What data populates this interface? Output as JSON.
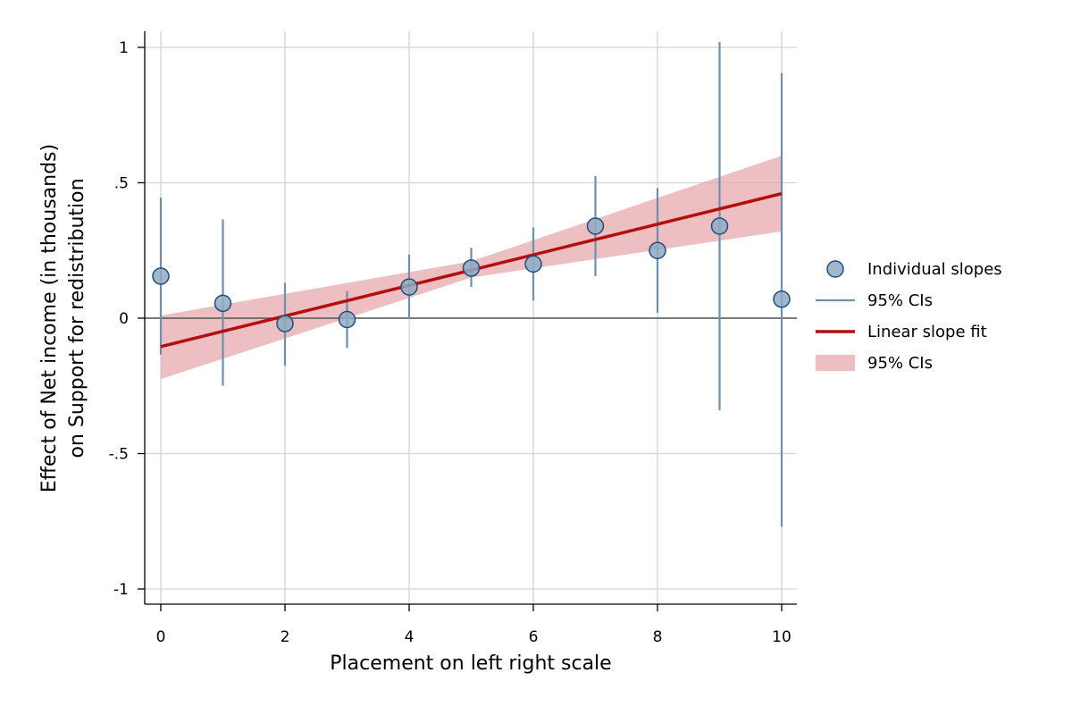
{
  "chart_data": {
    "type": "scatter",
    "xlabel": "Placement on left right scale",
    "ylabel_line1": "Effect of Net income (in thousands)",
    "ylabel_line2": "on Support for redistribution",
    "xlim": [
      0,
      10
    ],
    "ylim": [
      -1,
      1
    ],
    "x_ticks": [
      0,
      2,
      4,
      6,
      8,
      10
    ],
    "x_tick_labels": [
      "0",
      "2",
      "4",
      "6",
      "8",
      "10"
    ],
    "y_ticks": [
      1,
      0.5,
      0,
      -0.5,
      -1
    ],
    "y_tick_labels": [
      "1",
      ".5",
      "0",
      "-.5",
      "-1"
    ],
    "grid": true,
    "individual_slopes": [
      {
        "x": 0,
        "y": 0.155,
        "ci_low": -0.135,
        "ci_high": 0.445
      },
      {
        "x": 1,
        "y": 0.055,
        "ci_low": -0.25,
        "ci_high": 0.365
      },
      {
        "x": 2,
        "y": -0.02,
        "ci_low": -0.175,
        "ci_high": 0.13
      },
      {
        "x": 3,
        "y": -0.005,
        "ci_low": -0.11,
        "ci_high": 0.1
      },
      {
        "x": 4,
        "y": 0.115,
        "ci_low": 0.0,
        "ci_high": 0.235
      },
      {
        "x": 5,
        "y": 0.185,
        "ci_low": 0.115,
        "ci_high": 0.26
      },
      {
        "x": 6,
        "y": 0.2,
        "ci_low": 0.065,
        "ci_high": 0.335
      },
      {
        "x": 7,
        "y": 0.34,
        "ci_low": 0.155,
        "ci_high": 0.525
      },
      {
        "x": 8,
        "y": 0.25,
        "ci_low": 0.02,
        "ci_high": 0.48
      },
      {
        "x": 9,
        "y": 0.34,
        "ci_low": -0.34,
        "ci_high": 1.02
      },
      {
        "x": 10,
        "y": 0.07,
        "ci_low": -0.77,
        "ci_high": 0.905
      }
    ],
    "linear_fit": {
      "x_start": 0,
      "y_start": -0.105,
      "x_end": 10,
      "y_end": 0.46
    },
    "fit_ci_band": {
      "x": [
        0,
        5,
        10
      ],
      "lower": [
        -0.225,
        0.15,
        0.32
      ],
      "upper": [
        0.01,
        0.21,
        0.6
      ]
    },
    "legend": {
      "position": "right",
      "items": [
        {
          "label": "Individual slopes",
          "kind": "marker"
        },
        {
          "label": "95% CIs",
          "kind": "line"
        },
        {
          "label": "Linear slope fit",
          "kind": "fit"
        },
        {
          "label": "95% CIs",
          "kind": "band"
        }
      ]
    },
    "colors": {
      "marker_fill": "#8FAAC3",
      "marker_stroke": "#1F4E79",
      "ci_line": "#6F8FAF",
      "fit_line": "#B40F0F",
      "band": "#E7A9AD",
      "grid": "#D3D3D3",
      "axis": "#000000",
      "zero_line": "#555555"
    }
  }
}
